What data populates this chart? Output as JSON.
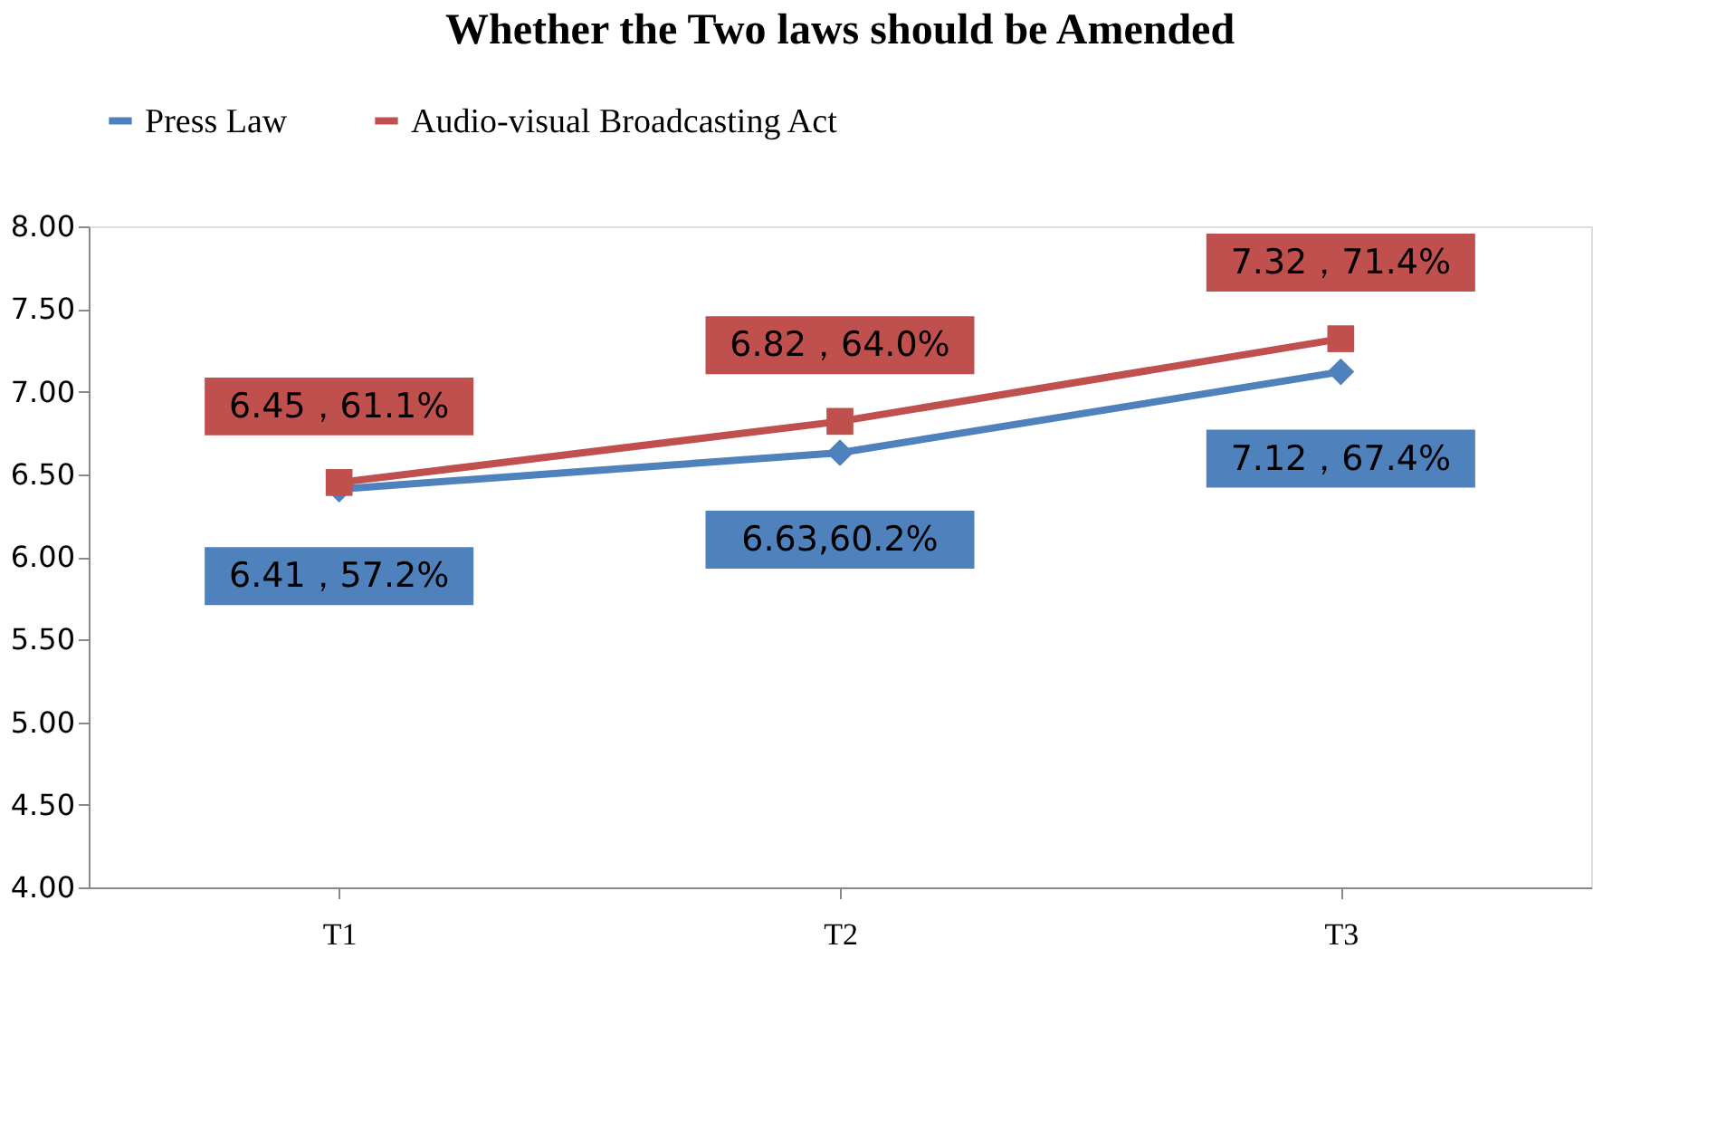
{
  "chart_data": {
    "type": "line",
    "title": "Whether the Two laws should be Amended",
    "categories": [
      "T1",
      "T2",
      "T3"
    ],
    "series": [
      {
        "name": "Press Law",
        "color": "#4f81bd",
        "marker": "diamond",
        "values": [
          6.41,
          6.63,
          7.12
        ],
        "value_labels": [
          "6.41，57.2%",
          "6.63,60.2%",
          "7.12，67.4%"
        ]
      },
      {
        "name": "Audio-visual Broadcasting Act",
        "color": "#c0504d",
        "marker": "square",
        "values": [
          6.45,
          6.82,
          7.32
        ],
        "value_labels": [
          "6.45，61.1%",
          "6.82，64.0%",
          "7.32，71.4%"
        ]
      }
    ],
    "ylim": [
      4,
      8
    ],
    "yticks": [
      {
        "value": 4,
        "label": "4.00"
      },
      {
        "value": 4.5,
        "label": "4.50"
      },
      {
        "value": 5,
        "label": "5.00"
      },
      {
        "value": 5.5,
        "label": "5.50"
      },
      {
        "value": 6,
        "label": "6.00"
      },
      {
        "value": 6.5,
        "label": "6.50"
      },
      {
        "value": 7,
        "label": "7.00"
      },
      {
        "value": 7.5,
        "label": "7.50"
      },
      {
        "value": 8,
        "label": "8.00"
      }
    ],
    "grid": false,
    "legend": "top",
    "line_style": "solid"
  }
}
